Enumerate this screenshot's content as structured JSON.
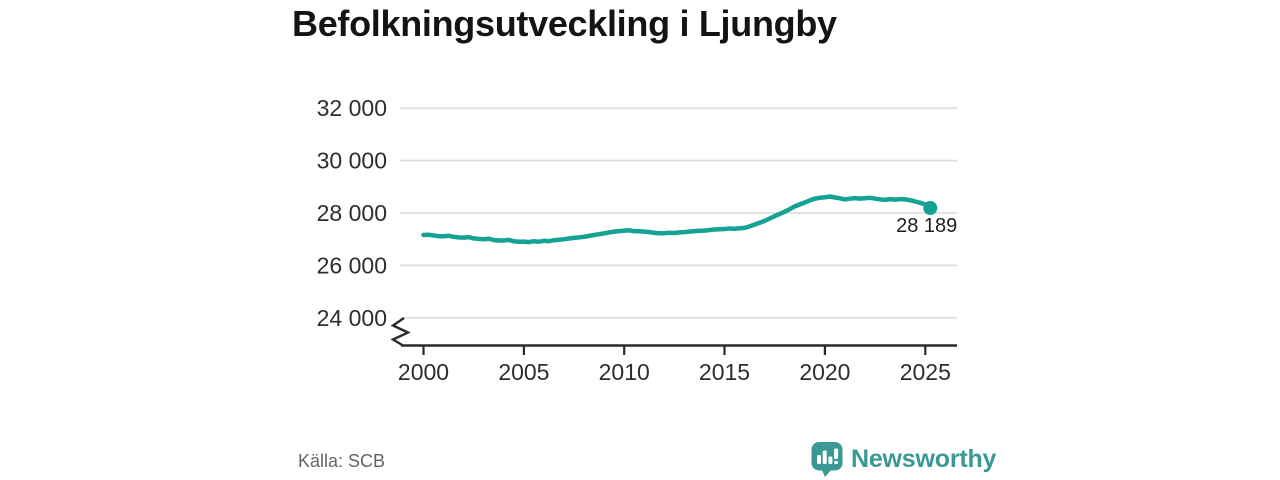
{
  "title": "Befolkningsutveckling i Ljungby",
  "source_note": "Källa: SCB",
  "branding": {
    "name": "Newsworthy",
    "icon": "newsworthy-speech-bubble-bar-chart-icon",
    "color": "#3a9994"
  },
  "colors": {
    "line": "#14a294",
    "marker": "#14a294",
    "grid": "#dedede",
    "axis": "#2b2b2b",
    "tick_text": "#2e2e2e",
    "annotation_text": "#1f1f1f",
    "title_text": "#141414",
    "source_text": "#63636b"
  },
  "chart_data": {
    "type": "line",
    "title": "Befolkningsutveckling i Ljungby",
    "xlabel": "",
    "ylabel": "",
    "grid": "horizontal",
    "legend": "none",
    "axis_break": true,
    "xlim": [
      1999.5,
      2026.5
    ],
    "ylim_shown": [
      24000,
      32000
    ],
    "x_ticks": [
      2000,
      2005,
      2010,
      2015,
      2020,
      2025
    ],
    "y_ticks": [
      {
        "value": 32000,
        "label": "32 000"
      },
      {
        "value": 30000,
        "label": "30 000"
      },
      {
        "value": 28000,
        "label": "28 000"
      },
      {
        "value": 26000,
        "label": "26 000"
      },
      {
        "value": 24000,
        "label": "24 000"
      }
    ],
    "last_point": {
      "year": 2025.25,
      "value": 28189,
      "label": "28 189"
    },
    "series": [
      {
        "name": "Befolkning Ljungby",
        "points": [
          [
            2000,
            27160
          ],
          [
            2000.25,
            27170
          ],
          [
            2000.5,
            27140
          ],
          [
            2000.75,
            27120
          ],
          [
            2001,
            27110
          ],
          [
            2001.25,
            27130
          ],
          [
            2001.5,
            27090
          ],
          [
            2001.75,
            27070
          ],
          [
            2002,
            27060
          ],
          [
            2002.25,
            27080
          ],
          [
            2002.5,
            27030
          ],
          [
            2002.75,
            27010
          ],
          [
            2003,
            27000
          ],
          [
            2003.25,
            27020
          ],
          [
            2003.5,
            26970
          ],
          [
            2003.75,
            26950
          ],
          [
            2004,
            26950
          ],
          [
            2004.25,
            26975
          ],
          [
            2004.5,
            26920
          ],
          [
            2004.75,
            26900
          ],
          [
            2005,
            26910
          ],
          [
            2005.25,
            26890
          ],
          [
            2005.5,
            26925
          ],
          [
            2005.75,
            26905
          ],
          [
            2006,
            26940
          ],
          [
            2006.25,
            26925
          ],
          [
            2006.5,
            26960
          ],
          [
            2006.75,
            26980
          ],
          [
            2007,
            27000
          ],
          [
            2007.25,
            27025
          ],
          [
            2007.5,
            27050
          ],
          [
            2007.75,
            27070
          ],
          [
            2008,
            27090
          ],
          [
            2008.25,
            27125
          ],
          [
            2008.5,
            27160
          ],
          [
            2008.75,
            27190
          ],
          [
            2009,
            27220
          ],
          [
            2009.25,
            27260
          ],
          [
            2009.5,
            27290
          ],
          [
            2009.75,
            27310
          ],
          [
            2010,
            27320
          ],
          [
            2010.25,
            27340
          ],
          [
            2010.5,
            27310
          ],
          [
            2010.75,
            27300
          ],
          [
            2011,
            27290
          ],
          [
            2011.25,
            27270
          ],
          [
            2011.5,
            27240
          ],
          [
            2011.75,
            27230
          ],
          [
            2012,
            27230
          ],
          [
            2012.25,
            27250
          ],
          [
            2012.5,
            27235
          ],
          [
            2012.75,
            27260
          ],
          [
            2013,
            27270
          ],
          [
            2013.25,
            27290
          ],
          [
            2013.5,
            27310
          ],
          [
            2013.75,
            27320
          ],
          [
            2014,
            27330
          ],
          [
            2014.25,
            27350
          ],
          [
            2014.5,
            27370
          ],
          [
            2014.75,
            27380
          ],
          [
            2015,
            27390
          ],
          [
            2015.25,
            27410
          ],
          [
            2015.5,
            27395
          ],
          [
            2015.75,
            27420
          ],
          [
            2016,
            27430
          ],
          [
            2016.25,
            27490
          ],
          [
            2016.5,
            27560
          ],
          [
            2016.75,
            27630
          ],
          [
            2017,
            27700
          ],
          [
            2017.25,
            27790
          ],
          [
            2017.5,
            27880
          ],
          [
            2017.75,
            27960
          ],
          [
            2018,
            28050
          ],
          [
            2018.25,
            28150
          ],
          [
            2018.5,
            28250
          ],
          [
            2018.75,
            28330
          ],
          [
            2019,
            28400
          ],
          [
            2019.25,
            28480
          ],
          [
            2019.5,
            28550
          ],
          [
            2019.75,
            28580
          ],
          [
            2020,
            28600
          ],
          [
            2020.25,
            28630
          ],
          [
            2020.5,
            28590
          ],
          [
            2020.75,
            28560
          ],
          [
            2021,
            28520
          ],
          [
            2021.25,
            28545
          ],
          [
            2021.5,
            28570
          ],
          [
            2021.75,
            28550
          ],
          [
            2022,
            28560
          ],
          [
            2022.25,
            28580
          ],
          [
            2022.5,
            28545
          ],
          [
            2022.75,
            28520
          ],
          [
            2023,
            28500
          ],
          [
            2023.25,
            28530
          ],
          [
            2023.5,
            28510
          ],
          [
            2023.75,
            28530
          ],
          [
            2024,
            28520
          ],
          [
            2024.25,
            28490
          ],
          [
            2024.5,
            28440
          ],
          [
            2024.75,
            28390
          ],
          [
            2025,
            28330
          ],
          [
            2025.25,
            28189
          ]
        ]
      }
    ]
  }
}
